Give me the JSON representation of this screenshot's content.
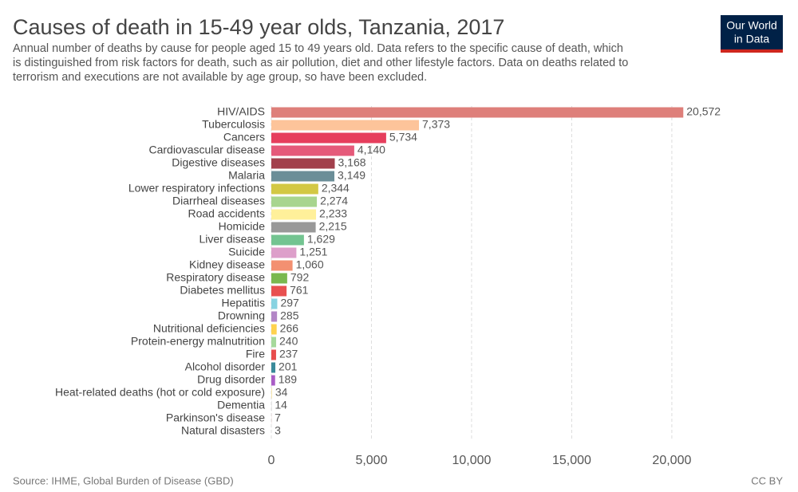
{
  "chart_data": {
    "type": "bar",
    "orientation": "horizontal",
    "title": "Causes of death in 15-49 year olds, Tanzania, 2017",
    "subtitle": [
      "Annual number of deaths by cause for people aged 15 to 49 years old. Data refers to the specific cause of death, which",
      "is distinguished from risk factors for death, such as air pollution, diet and other lifestyle factors. Data on deaths related to",
      "terrorism and executions are not available by age group, so have been excluded."
    ],
    "source": "Source: IHME, Global Burden of Disease (GBD)",
    "license": "CC BY",
    "logo": [
      "Our World",
      "in Data"
    ],
    "categories": [
      "HIV/AIDS",
      "Tuberculosis",
      "Cancers",
      "Cardiovascular disease",
      "Digestive diseases",
      "Malaria",
      "Lower respiratory infections",
      "Diarrheal diseases",
      "Road accidents",
      "Homicide",
      "Liver disease",
      "Suicide",
      "Kidney disease",
      "Respiratory disease",
      "Diabetes mellitus",
      "Hepatitis",
      "Drowning",
      "Nutritional deficiencies",
      "Protein-energy malnutrition",
      "Fire",
      "Alcohol disorder",
      "Drug disorder",
      "Heat-related deaths (hot or cold exposure)",
      "Dementia",
      "Parkinson's disease",
      "Natural disasters"
    ],
    "values": [
      20572,
      7373,
      5734,
      4140,
      3168,
      3149,
      2344,
      2274,
      2233,
      2215,
      1629,
      1251,
      1060,
      792,
      761,
      297,
      285,
      266,
      240,
      237,
      201,
      189,
      34,
      14,
      7,
      3
    ],
    "value_labels": [
      "20,572",
      "7,373",
      "5,734",
      "4,140",
      "3,168",
      "3,149",
      "2,344",
      "2,274",
      "2,233",
      "2,215",
      "1,629",
      "1,251",
      "1,060",
      "792",
      "761",
      "297",
      "285",
      "266",
      "240",
      "237",
      "201",
      "189",
      "34",
      "14",
      "7",
      "3"
    ],
    "colors": [
      "#de7f7a",
      "#fdc49a",
      "#e63e5d",
      "#e55a7a",
      "#a2404c",
      "#6b8e98",
      "#d3c844",
      "#a8d58e",
      "#fff09a",
      "#999999",
      "#73c491",
      "#dd9fca",
      "#f39071",
      "#7ab84f",
      "#e85050",
      "#88d3e1",
      "#b386c6",
      "#ffd24e",
      "#a6d99b",
      "#e84d4d",
      "#3b8a9a",
      "#a95cc5",
      "#f7e3a0",
      "#c0c0c0",
      "#cc9999",
      "#cccccc"
    ],
    "xlim": [
      0,
      21000
    ],
    "xticks": [
      0,
      {
        "value": 5000,
        "label": "5,000"
      },
      {
        "value": 10000,
        "label": "10,000"
      },
      {
        "value": 15000,
        "label": "15,000"
      },
      {
        "value": 20000,
        "label": "20,000"
      }
    ],
    "grid": true
  }
}
